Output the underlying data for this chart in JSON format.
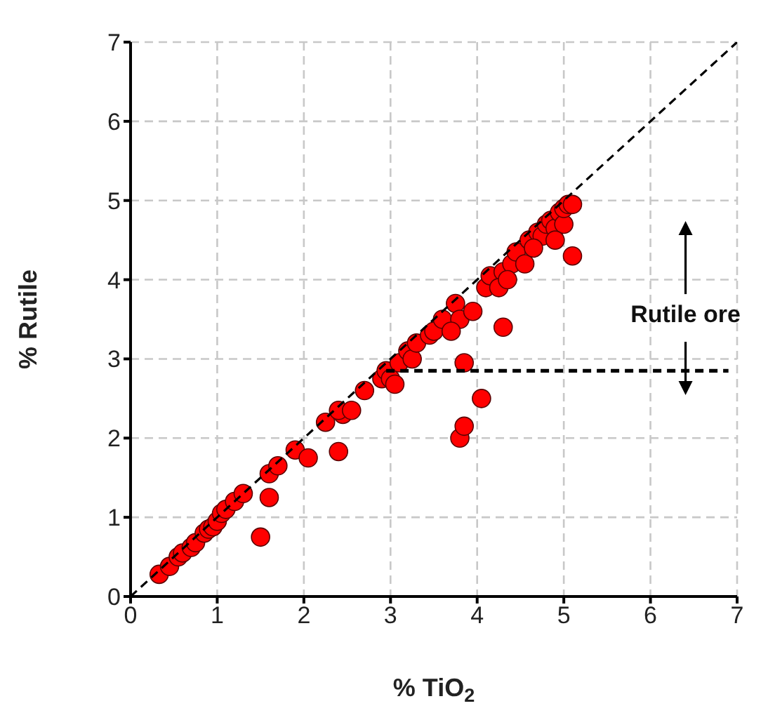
{
  "chart_data": {
    "type": "scatter",
    "xlabel": "% TiO$_{2}$",
    "ylabel": "% Rutile",
    "xlim": [
      0,
      7
    ],
    "ylim": [
      0,
      7
    ],
    "xticks": [
      0,
      1,
      2,
      3,
      4,
      5,
      6,
      7
    ],
    "yticks": [
      0,
      1,
      2,
      3,
      4,
      5,
      6,
      7
    ],
    "grid": true,
    "annotations": [
      "Rutile ore"
    ],
    "series": [
      {
        "color": "#ff0000",
        "marker": "circle",
        "x": [
          0.33,
          0.45,
          0.55,
          0.6,
          0.7,
          0.75,
          0.85,
          0.9,
          0.95,
          1.0,
          1.05,
          1.1,
          1.2,
          1.3,
          1.5,
          1.6,
          1.6,
          1.7,
          1.9,
          2.05,
          2.25,
          2.4,
          2.45,
          2.4,
          2.55,
          2.7,
          2.9,
          2.95,
          3.0,
          3.05,
          3.1,
          3.2,
          3.25,
          3.3,
          3.45,
          3.5,
          3.6,
          3.75,
          3.8,
          3.7,
          3.85,
          3.95,
          3.8,
          3.85,
          4.05,
          4.1,
          4.15,
          4.3,
          4.3,
          4.4,
          4.45,
          4.55,
          4.25,
          4.35,
          4.6,
          4.7,
          4.75,
          4.8,
          4.85,
          4.9,
          4.95,
          5.0,
          5.0,
          5.05,
          5.1,
          5.1,
          4.9,
          4.65
        ],
        "values": [
          0.28,
          0.38,
          0.5,
          0.55,
          0.62,
          0.68,
          0.8,
          0.85,
          0.88,
          0.95,
          1.05,
          1.1,
          1.2,
          1.3,
          0.75,
          1.25,
          1.55,
          1.65,
          1.85,
          1.75,
          2.2,
          1.83,
          2.3,
          2.35,
          2.35,
          2.6,
          2.75,
          2.85,
          2.75,
          2.68,
          2.95,
          3.1,
          3.0,
          3.2,
          3.3,
          3.35,
          3.5,
          3.7,
          3.5,
          3.35,
          2.95,
          3.6,
          2.0,
          2.15,
          2.5,
          3.9,
          4.05,
          3.4,
          4.1,
          4.2,
          4.35,
          4.2,
          3.9,
          4.0,
          4.5,
          4.6,
          4.55,
          4.7,
          4.75,
          4.65,
          4.85,
          4.7,
          4.9,
          4.95,
          4.95,
          4.3,
          4.5,
          4.4
        ]
      },
      {
        "type": "line",
        "color": "#000000",
        "marker": "none",
        "line_style": "dashed",
        "x": [
          0,
          7
        ],
        "values": [
          0,
          7
        ]
      },
      {
        "type": "line",
        "color": "#000000",
        "marker": "none",
        "line_style": "dashed",
        "x": [
          2.95,
          6.9
        ],
        "values": [
          2.85,
          2.85
        ]
      }
    ]
  }
}
